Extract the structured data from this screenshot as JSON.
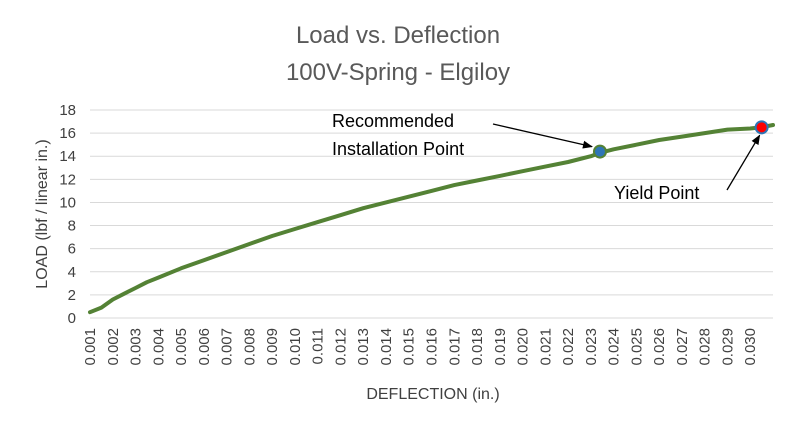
{
  "chart_data": {
    "type": "line",
    "title": "Load vs. Deflection",
    "subtitle": "100V-Spring - Elgiloy",
    "xlabel": "DEFLECTION (in.)",
    "ylabel": "LOAD (lbf / linear in.)",
    "xlim": [
      0.001,
      0.031
    ],
    "ylim": [
      0,
      18
    ],
    "x_ticks": [
      "0.001",
      "0.002",
      "0.003",
      "0.004",
      "0.005",
      "0.006",
      "0.007",
      "0.008",
      "0.009",
      "0.010",
      "0.011",
      "0.012",
      "0.013",
      "0.014",
      "0.015",
      "0.016",
      "0.017",
      "0.018",
      "0.019",
      "0.020",
      "0.021",
      "0.022",
      "0.023",
      "0.024",
      "0.025",
      "0.026",
      "0.027",
      "0.028",
      "0.029",
      "0.030"
    ],
    "y_ticks": [
      "0",
      "2",
      "4",
      "6",
      "8",
      "10",
      "12",
      "14",
      "16",
      "18"
    ],
    "grid": true,
    "colors": {
      "line": "#548235",
      "recommended_marker": "#2e75b6",
      "yield_marker": "#ff0000",
      "grid": "#d9d9d9"
    },
    "series": [
      {
        "x": [
          0.001,
          0.0015,
          0.002,
          0.0025,
          0.003,
          0.0035,
          0.004,
          0.005,
          0.006,
          0.007,
          0.008,
          0.009,
          0.01,
          0.011,
          0.012,
          0.013,
          0.014,
          0.015,
          0.016,
          0.017,
          0.018,
          0.019,
          0.02,
          0.021,
          0.022,
          0.023,
          0.0234,
          0.024,
          0.025,
          0.026,
          0.027,
          0.028,
          0.029,
          0.03,
          0.0305,
          0.031
        ],
        "values": [
          0.5,
          0.9,
          1.6,
          2.1,
          2.6,
          3.1,
          3.5,
          4.3,
          5.0,
          5.7,
          6.4,
          7.1,
          7.7,
          8.3,
          8.9,
          9.5,
          10.0,
          10.5,
          11.0,
          11.5,
          11.9,
          12.3,
          12.7,
          13.1,
          13.5,
          14.0,
          14.3,
          14.6,
          15.0,
          15.4,
          15.7,
          16.0,
          16.3,
          16.4,
          16.5,
          16.7
        ]
      }
    ],
    "annotations": [
      {
        "text_lines": [
          "Recommended",
          "Installation Point"
        ],
        "x": 0.0234,
        "y": 14.4
      },
      {
        "text_lines": [
          "Yield Point"
        ],
        "x": 0.0305,
        "y": 16.5
      }
    ]
  }
}
